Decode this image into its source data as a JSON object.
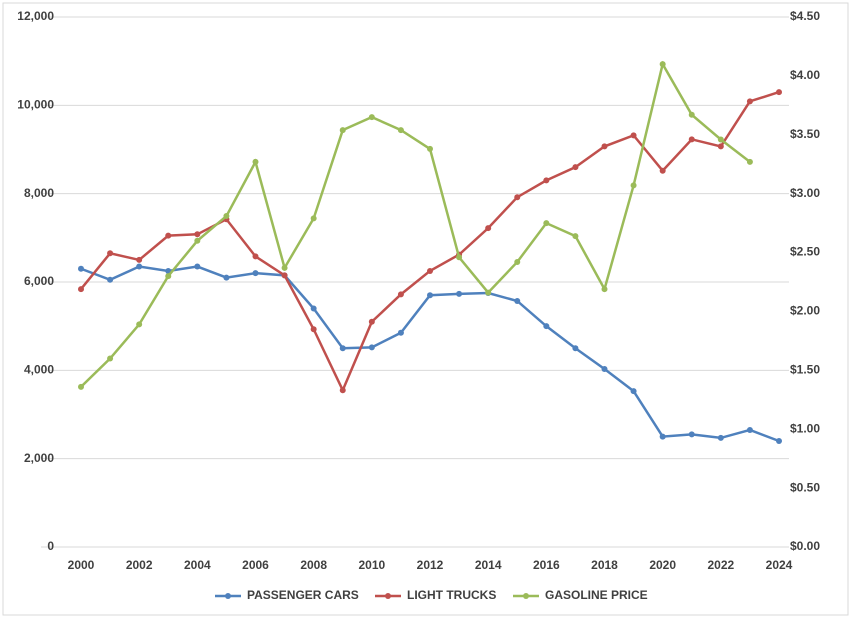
{
  "chart_data": {
    "type": "line",
    "x": [
      2000,
      2001,
      2002,
      2003,
      2004,
      2005,
      2006,
      2007,
      2008,
      2009,
      2010,
      2011,
      2012,
      2013,
      2014,
      2015,
      2016,
      2017,
      2018,
      2019,
      2020,
      2021,
      2022,
      2023,
      2024
    ],
    "series": [
      {
        "name": "PASSENGER CARS",
        "color": "#4f81bd",
        "values": [
          6300,
          6050,
          6350,
          6250,
          6350,
          6100,
          6200,
          6150,
          5400,
          4500,
          4520,
          4850,
          5700,
          5730,
          5750,
          5570,
          5000,
          4500,
          4030,
          3530,
          2500,
          2550,
          2470,
          2650,
          2400
        ]
      },
      {
        "name": "LIGHT TRUCKS",
        "color": "#c0504d",
        "values": [
          5840,
          6650,
          6500,
          7050,
          7080,
          7420,
          6580,
          6150,
          4930,
          3550,
          5100,
          5720,
          6250,
          6620,
          7220,
          7920,
          8300,
          8600,
          9070,
          9320,
          8520,
          9230,
          9070,
          10090,
          10300
        ]
      },
      {
        "name": "GASOLINE PRICE",
        "color": "#9bbb59",
        "axis": "y2",
        "values": [
          1.36,
          1.6,
          1.89,
          2.3,
          2.6,
          2.81,
          3.27,
          2.37,
          2.79,
          3.54,
          3.65,
          3.54,
          3.38,
          2.46,
          2.16,
          2.42,
          2.75,
          2.64,
          2.19,
          3.07,
          4.1,
          3.67,
          3.46,
          3.27,
          null
        ]
      }
    ],
    "xlim": [
      2000,
      2024
    ],
    "xticks": [
      2000,
      2002,
      2004,
      2006,
      2008,
      2010,
      2012,
      2014,
      2016,
      2018,
      2020,
      2022,
      2024
    ],
    "ylim": [
      0,
      12000
    ],
    "yticks": [
      0,
      {
        "value": 2000,
        "label": "2,000"
      },
      {
        "value": 4000,
        "label": "4,000"
      },
      {
        "value": 6000,
        "label": "6,000"
      },
      {
        "value": 8000,
        "label": "8,000"
      },
      {
        "value": 10000,
        "label": "10,000"
      },
      {
        "value": 12000,
        "label": "12,000"
      }
    ],
    "y2lim": [
      0,
      4.5
    ],
    "y2ticks": [
      {
        "value": 0,
        "label": "$0.00"
      },
      {
        "value": 0.5,
        "label": "$0.50"
      },
      {
        "value": 1,
        "label": "$1.00"
      },
      {
        "value": 1.5,
        "label": "$1.50"
      },
      {
        "value": 2,
        "label": "$2.00"
      },
      {
        "value": 2.5,
        "label": "$2.50"
      },
      {
        "value": 3,
        "label": "$3.00"
      },
      {
        "value": 3.5,
        "label": "$3.50"
      },
      {
        "value": 4,
        "label": "$4.00"
      },
      {
        "value": 4.5,
        "label": "$4.50"
      }
    ],
    "grid": true,
    "legend": "bottom"
  }
}
